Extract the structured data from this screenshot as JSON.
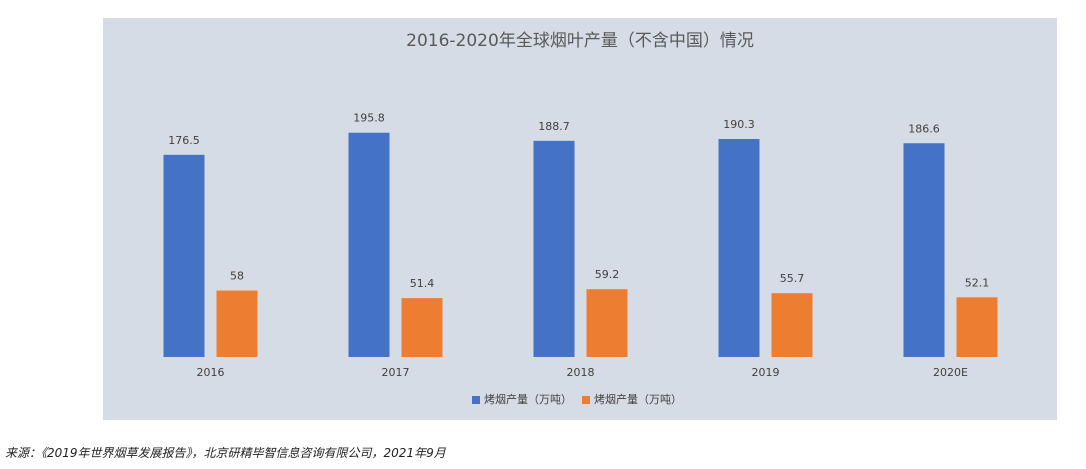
{
  "chart_data": {
    "type": "bar",
    "title": "2016-2020年全球烟叶产量（不含中国）情况",
    "categories": [
      "2016",
      "2017",
      "2018",
      "2019",
      "2020E"
    ],
    "series": [
      {
        "name": "烤烟产量（万吨）",
        "color": "#4472c4",
        "values": [
          176.5,
          195.8,
          188.7,
          190.3,
          186.6
        ]
      },
      {
        "name": "烤烟产量（万吨）",
        "color": "#ed7d31",
        "values": [
          58,
          51.4,
          59.2,
          55.7,
          52.1
        ]
      }
    ],
    "ylim": [
      0,
      220
    ],
    "legend": "bottom"
  },
  "source": "来源：《2019年世界烟草发展报告》，北京研精毕智信息咨询有限公司，2021年9月"
}
